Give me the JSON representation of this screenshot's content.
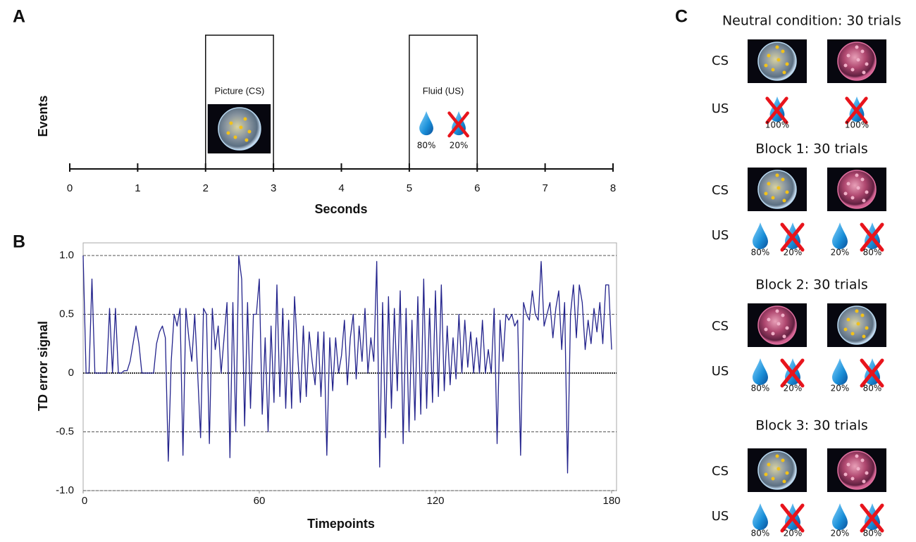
{
  "panel_labels": [
    "A",
    "B",
    "C"
  ],
  "chart_data": [
    {
      "type": "timeline",
      "xlabel": "Seconds",
      "ylabel": "Events",
      "xlim": [
        0,
        8
      ],
      "xticks": [
        0,
        1,
        2,
        3,
        4,
        5,
        6,
        7,
        8
      ],
      "events": [
        {
          "label": "Picture (CS)",
          "start": 2,
          "end": 3
        },
        {
          "label": "Fluid (US)",
          "start": 5,
          "end": 6,
          "outcomes": [
            "80%",
            "20%"
          ]
        }
      ]
    },
    {
      "type": "line",
      "xlabel": "Timepoints",
      "ylabel": "TD error signal",
      "color": "#23238c",
      "xlim": [
        0,
        180
      ],
      "xticks": [
        0,
        60,
        120,
        180
      ],
      "ylim": [
        -1,
        1
      ],
      "yticks": [
        {
          "value": 1,
          "label": "1.0"
        },
        0.5,
        0,
        -0.5,
        {
          "value": -1,
          "label": "-1.0"
        }
      ],
      "grid": true,
      "values": [
        1.0,
        0,
        0,
        0.8,
        0,
        0,
        0,
        0,
        0,
        0.55,
        0,
        0.55,
        0,
        0,
        0.02,
        0.02,
        0.1,
        0.25,
        0.4,
        0.25,
        0,
        0,
        0,
        0,
        0,
        0.25,
        0.35,
        0.4,
        0.3,
        -0.75,
        0.1,
        0.5,
        0.4,
        0.55,
        -0.7,
        0.55,
        0.3,
        0.1,
        0.5,
        0,
        -0.55,
        0.55,
        0.5,
        -0.6,
        0.55,
        0.2,
        0.4,
        0,
        0.3,
        0.6,
        -0.72,
        0.6,
        -0.5,
        1.0,
        0.8,
        -0.45,
        0.6,
        -0.3,
        0.5,
        0.5,
        0.8,
        -0.35,
        0.3,
        -0.5,
        0.4,
        -0.25,
        0.75,
        -0.2,
        0.55,
        -0.3,
        0.45,
        -0.3,
        0.65,
        0.2,
        -0.25,
        0.4,
        -0.2,
        0.35,
        0.1,
        -0.1,
        0.35,
        -0.2,
        0.35,
        -0.7,
        0.3,
        -0.15,
        0.3,
        0,
        0.15,
        0.45,
        -0.1,
        0.3,
        0.5,
        -0.05,
        0.4,
        0.1,
        0.55,
        0,
        0.3,
        0.1,
        0.95,
        -0.8,
        0.6,
        -0.55,
        0.65,
        -0.3,
        0.55,
        -0.15,
        0.7,
        -0.6,
        0.55,
        -0.5,
        0.45,
        -0.4,
        0.65,
        -0.35,
        0.8,
        -0.3,
        0.55,
        -0.25,
        0.7,
        -0.2,
        0.75,
        -0.15,
        0.4,
        -0.1,
        0.3,
        -0.05,
        0.5,
        0,
        0.45,
        0.05,
        0.35,
        0,
        0.3,
        0,
        0.45,
        0,
        0.2,
        0,
        0.55,
        -0.6,
        0.45,
        0.1,
        0.5,
        0.45,
        0.5,
        0.4,
        0.45,
        -0.7,
        0.6,
        0.5,
        0.45,
        0.7,
        0.5,
        0.45,
        0.95,
        0.4,
        0.5,
        0.6,
        0.3,
        0.55,
        0.7,
        0.2,
        0.6,
        -0.85,
        0.5,
        0.75,
        0.3,
        0.75,
        0.6,
        0.2,
        0.45,
        0.25,
        0.55,
        0.35,
        0.6,
        0.25,
        0.75,
        0.75,
        0.2
      ]
    }
  ],
  "conditions": {
    "row_labels": [
      "CS",
      "US"
    ],
    "blocks": [
      {
        "title": "Neutral condition: 30 trials",
        "outcomes": [
          [
            "100%"
          ],
          [
            "100%"
          ]
        ]
      },
      {
        "title": "Block 1: 30 trials",
        "outcomes": [
          [
            "80%",
            "20%"
          ],
          [
            "20%",
            "80%"
          ]
        ]
      },
      {
        "title": "Block 2: 30 trials",
        "outcomes": [
          [
            "80%",
            "20%"
          ],
          [
            "20%",
            "80%"
          ]
        ]
      },
      {
        "title": "Block 3: 30 trials",
        "outcomes": [
          [
            "80%",
            "20%"
          ],
          [
            "20%",
            "80%"
          ]
        ]
      }
    ]
  }
}
